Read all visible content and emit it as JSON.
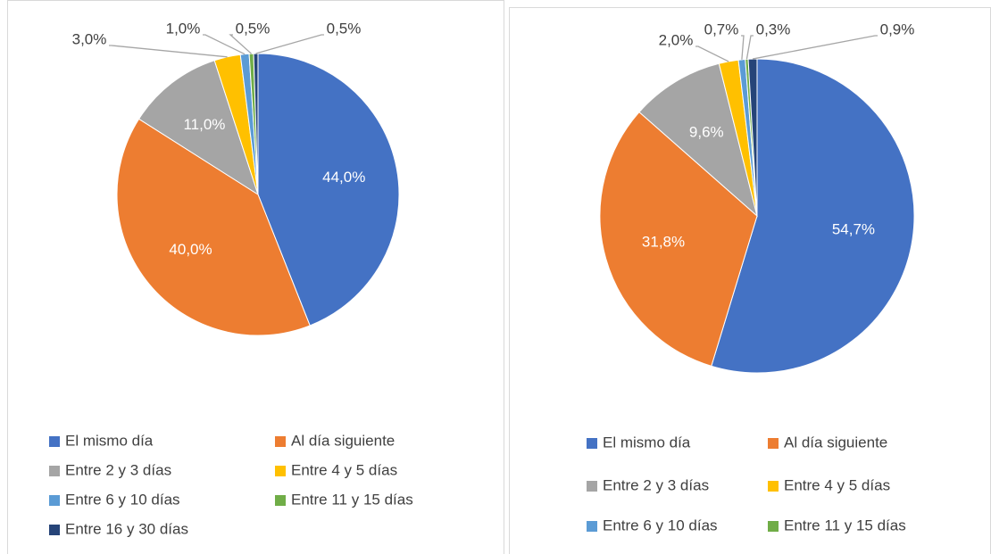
{
  "chart_data": [
    {
      "type": "pie",
      "categories": [
        "El mismo día",
        "Al día siguiente",
        "Entre 2 y 3 días",
        "Entre 4 y 5 días",
        "Entre 6 y 10 días",
        "Entre 11 y 15 días",
        "Entre 16 y 30 días"
      ],
      "values": [
        44.0,
        40.0,
        11.0,
        3.0,
        1.0,
        0.5,
        0.5
      ],
      "value_labels": [
        "44,0%",
        "40,0%",
        "11,0%",
        "3,0%",
        "1,0%",
        "0,5%",
        "0,5%"
      ],
      "colors": [
        "#4472c4",
        "#ed7d31",
        "#a5a5a5",
        "#ffc000",
        "#5b9bd5",
        "#70ad47",
        "#264478"
      ],
      "legend": "bottom"
    },
    {
      "type": "pie",
      "categories": [
        "El mismo día",
        "Al día siguiente",
        "Entre 2 y 3 días",
        "Entre 4 y 5 días",
        "Entre 6 y 10 días",
        "Entre 11 y 15 días",
        null
      ],
      "values": [
        54.7,
        31.8,
        9.6,
        2.0,
        0.7,
        0.3,
        0.9
      ],
      "value_labels": [
        "54,7%",
        "31,8%",
        "9,6%",
        "2,0%",
        "0,7%",
        "0,3%",
        "0,9%"
      ],
      "colors": [
        "#4472c4",
        "#ed7d31",
        "#a5a5a5",
        "#ffc000",
        "#5b9bd5",
        "#70ad47",
        "#264478"
      ],
      "legend": "bottom"
    }
  ]
}
